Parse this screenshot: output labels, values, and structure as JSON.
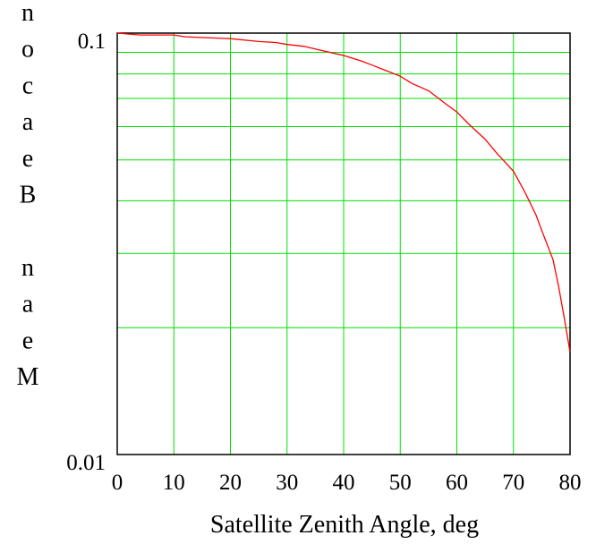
{
  "chart_data": {
    "type": "line",
    "title": "",
    "xlabel": "Satellite Zenith Angle, deg",
    "ylabel_letters": [
      "n",
      "o",
      "c",
      "a",
      "e",
      "B",
      "",
      "n",
      "a",
      "e",
      "M"
    ],
    "xlim": [
      0,
      80
    ],
    "ylim": [
      0.01,
      0.1
    ],
    "yscale": "log",
    "grid": true,
    "x_ticks": [
      "0",
      "10",
      "20",
      "30",
      "40",
      "50",
      "60",
      "70",
      "80"
    ],
    "x_tick_values": [
      0,
      10,
      20,
      30,
      40,
      50,
      60,
      70,
      80
    ],
    "y_ticks": [
      "0.01",
      "0.1"
    ],
    "y_tick_values": [
      0.01,
      0.1
    ],
    "y_grid_values": [
      0.02,
      0.03,
      0.04,
      0.05,
      0.06,
      0.07,
      0.08,
      0.09,
      0.1
    ],
    "series": [
      {
        "color": "#ff0000",
        "x": [
          0,
          4,
          10,
          12,
          20,
          25,
          28,
          30,
          33,
          36,
          40,
          43,
          45,
          48,
          50,
          52,
          55,
          58,
          60,
          62,
          65,
          67,
          70,
          72,
          74,
          75,
          77,
          78,
          79,
          80
        ],
        "y": [
          0.1,
          0.099,
          0.099,
          0.098,
          0.097,
          0.0955,
          0.095,
          0.094,
          0.093,
          0.091,
          0.0885,
          0.086,
          0.084,
          0.081,
          0.079,
          0.076,
          0.073,
          0.068,
          0.065,
          0.061,
          0.056,
          0.052,
          0.047,
          0.042,
          0.037,
          0.034,
          0.029,
          0.025,
          0.021,
          0.0175
        ]
      }
    ]
  },
  "colors": {
    "grid": "#00e000",
    "line": "#ff0000",
    "axis": "#000000",
    "background": "#ffffff"
  }
}
